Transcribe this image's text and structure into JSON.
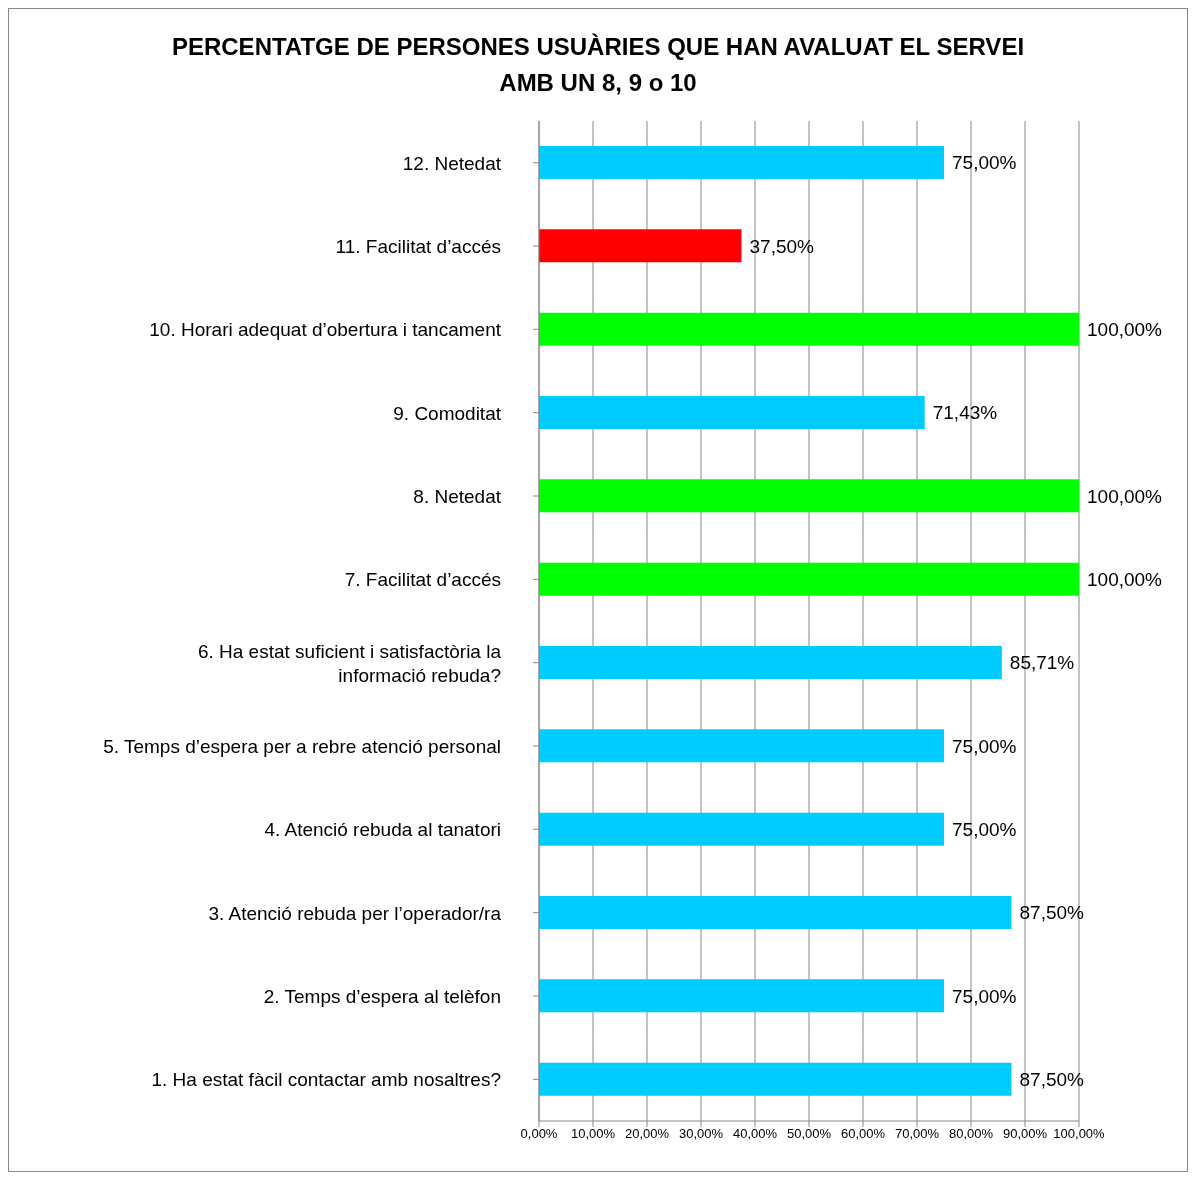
{
  "chart_data": {
    "type": "bar",
    "orientation": "horizontal",
    "title": "PERCENTATGE DE PERSONES USUÀRIES QUE HAN AVALUAT EL SERVEI AMB UN 8, 9 o 10",
    "categories": [
      "12. Netedat",
      "11. Facilitat d’accés",
      "10. Horari adequat d’obertura i tancament",
      "9. Comoditat",
      "8. Netedat",
      "7. Facilitat d’accés",
      "6. Ha estat suficient i satisfactòria la informació rebuda?",
      "5. Temps d’espera per a rebre atenció personal",
      "4. Atenció rebuda al tanatori",
      "3. Atenció rebuda per l’operador/ra",
      "2. Temps d’espera al telèfon",
      "1. Ha estat fàcil contactar amb nosaltres?"
    ],
    "values": [
      75,
      37.5,
      100,
      71.43,
      100,
      100,
      85.71,
      75,
      75,
      87.5,
      75,
      87.5
    ],
    "value_labels": [
      "75,00%",
      "37,50%",
      "100,00%",
      "71,43%",
      "100,00%",
      "100,00%",
      "85,71%",
      "75,00%",
      "75,00%",
      "87,50%",
      "75,00%",
      "87,50%"
    ],
    "colors": [
      "#00ccff",
      "#ff0000",
      "#00ff00",
      "#00ccff",
      "#00ff00",
      "#00ff00",
      "#00ccff",
      "#00ccff",
      "#00ccff",
      "#00ccff",
      "#00ccff",
      "#00ccff"
    ],
    "xlim": [
      0,
      100
    ],
    "xticks": [
      {
        "value": 0,
        "label": "0,00%"
      },
      {
        "value": 10,
        "label": "10,00%"
      },
      {
        "value": 20,
        "label": "20,00%"
      },
      {
        "value": 30,
        "label": "30,00%"
      },
      {
        "value": 40,
        "label": "40,00%"
      },
      {
        "value": 50,
        "label": "50,00%"
      },
      {
        "value": 60,
        "label": "60,00%"
      },
      {
        "value": 70,
        "label": "70,00%"
      },
      {
        "value": 80,
        "label": "80,00%"
      },
      {
        "value": 90,
        "label": "90,00%"
      },
      {
        "value": 100,
        "label": "100,00%"
      }
    ],
    "grid": "x",
    "legend": false
  }
}
